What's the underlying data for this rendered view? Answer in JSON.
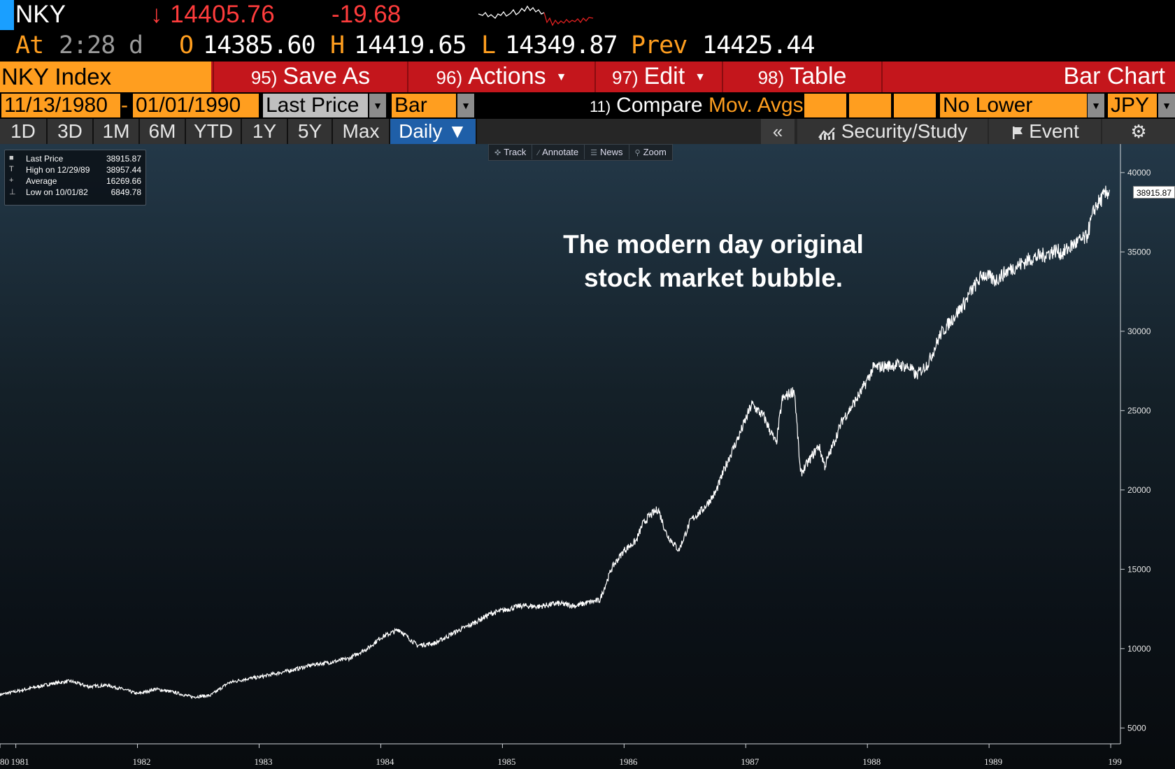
{
  "ticker": {
    "symbol": "NKY",
    "last": "↓ 14405.76",
    "change": "-19.68",
    "at_label": "At",
    "time": "2:28",
    "time_suffix": "d",
    "open_label": "O",
    "open": "14385.60",
    "high_label": "H",
    "high": "14419.65",
    "low_label": "L",
    "low": "14349.87",
    "prev_label": "Prev",
    "prev": "14425.44"
  },
  "funcbar": {
    "security": "NKY Index",
    "save_num": "95)",
    "save_label": "Save As",
    "actions_num": "96)",
    "actions_label": "Actions",
    "edit_num": "97)",
    "edit_label": "Edit",
    "table_num": "98)",
    "table_label": "Table",
    "chart_type": "Bar Chart"
  },
  "options": {
    "start_date": "11/13/1980",
    "dash": "-",
    "end_date": "01/01/1990",
    "field": "Last Price",
    "style": "Bar",
    "compare_num": "11)",
    "compare_label": "Compare",
    "mov_avgs": "Mov. Avgs",
    "lower_chart": "No Lower Chart",
    "currency": "JPY"
  },
  "periods": [
    "1D",
    "3D",
    "1M",
    "6M",
    "YTD",
    "1Y",
    "5Y",
    "Max"
  ],
  "period_active": "Daily ▼",
  "toolbar_right": {
    "collapse": "«",
    "security_study": "Security/Study",
    "event": "Event"
  },
  "chart_tools": [
    "Track",
    "Annotate",
    "News",
    "Zoom"
  ],
  "legend": [
    {
      "key": "■",
      "label": "Last Price",
      "value": "38915.87"
    },
    {
      "key": "T",
      "label": "High on 12/29/89",
      "value": "38957.44"
    },
    {
      "key": "+",
      "label": "Average",
      "value": "16269.66"
    },
    {
      "key": "⊥",
      "label": "Low on 10/01/82",
      "value": "6849.78"
    }
  ],
  "annotation": [
    "The modern day original",
    "stock market bubble."
  ],
  "last_price_tag": "38915.87",
  "colors": {
    "accent_orange": "#ff9e1f",
    "function_red": "#c4161c",
    "down_red": "#ff3c3c",
    "active_blue": "#1f5fa8",
    "line": "#ffffff"
  },
  "chart_data": {
    "type": "line",
    "title": "",
    "xlabel": "",
    "ylabel": "",
    "series": [
      {
        "x": [
          1980.87,
          1981.0,
          1981.15,
          1981.3,
          1981.45,
          1981.6,
          1981.75,
          1981.9,
          1982.0,
          1982.15,
          1982.3,
          1982.45,
          1982.6,
          1982.75,
          1982.9,
          1983.0,
          1983.15,
          1983.3,
          1983.45,
          1983.6,
          1983.75,
          1983.8,
          1983.9,
          1984.0,
          1984.15,
          1984.3,
          1984.45,
          1984.6,
          1984.75,
          1984.9,
          1985.0,
          1985.15,
          1985.3,
          1985.45,
          1985.6,
          1985.7,
          1985.8,
          1985.9,
          1986.0,
          1986.1,
          1986.15,
          1986.2,
          1986.28,
          1986.35,
          1986.45,
          1986.55,
          1986.65,
          1986.75,
          1986.85,
          1986.95,
          1987.05,
          1987.15,
          1987.25,
          1987.3,
          1987.4,
          1987.45,
          1987.6,
          1987.65,
          1987.8,
          1987.85,
          1987.95,
          1988.05,
          1988.15,
          1988.25,
          1988.35,
          1988.4,
          1988.5,
          1988.6,
          1988.7,
          1988.8,
          1988.85,
          1988.95,
          1989.05,
          1989.15,
          1989.25,
          1989.35,
          1989.45,
          1989.55,
          1989.6,
          1989.7,
          1989.8,
          1989.87,
          1989.92,
          1989.99
        ],
        "y": [
          7100,
          7300,
          7550,
          7800,
          7950,
          7600,
          7700,
          7400,
          7150,
          7450,
          7250,
          6950,
          7050,
          7850,
          8100,
          8200,
          8450,
          8700,
          9000,
          9150,
          9400,
          9650,
          10050,
          10700,
          11200,
          10200,
          10350,
          11000,
          11550,
          12200,
          12400,
          12700,
          12650,
          12850,
          12700,
          12900,
          13050,
          15100,
          16200,
          16800,
          17800,
          18300,
          18800,
          17200,
          16200,
          18100,
          18800,
          19800,
          21800,
          23500,
          25400,
          24600,
          22900,
          25700,
          26300,
          21000,
          22800,
          21500,
          24500,
          25000,
          26200,
          27700,
          27800,
          27900,
          27700,
          27200,
          28000,
          29800,
          30800,
          31800,
          32500,
          33600,
          33200,
          33800,
          34200,
          34600,
          34800,
          35100,
          34900,
          35500,
          35900,
          37800,
          38300,
          38916
        ]
      }
    ],
    "x_ticks": [
      "80",
      "1981",
      "1982",
      "1983",
      "1984",
      "1985",
      "1986",
      "1987",
      "1988",
      "1989",
      "199"
    ],
    "y_ticks": [
      5000,
      10000,
      15000,
      20000,
      25000,
      30000,
      35000,
      40000
    ],
    "xlim": [
      1980.87,
      1990.08
    ],
    "ylim": [
      4000,
      41800
    ],
    "grid": false,
    "legend": "top-left",
    "y_axis_side": "right"
  }
}
